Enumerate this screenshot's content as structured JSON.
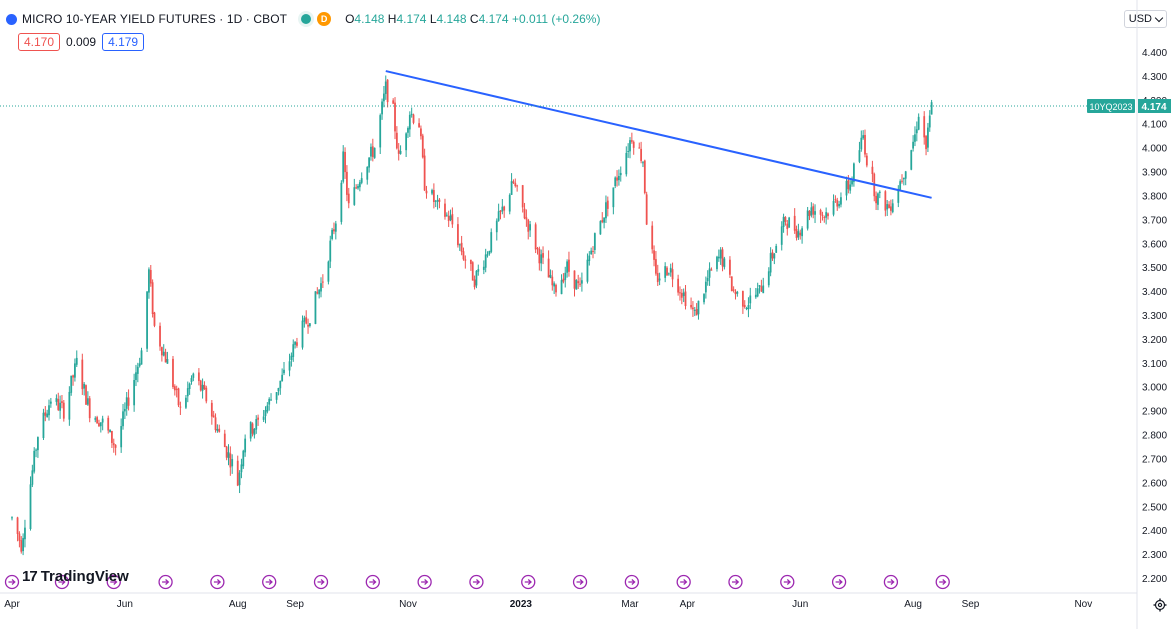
{
  "header": {
    "title": "MICRO 10-YEAR YIELD FUTURES · 1D · CBOT",
    "interval_badge": "D",
    "ohlc": {
      "o": "4.148",
      "h": "4.174",
      "l": "4.148",
      "c": "4.174",
      "change": "+0.011 (+0.26%)"
    },
    "bid": "4.170",
    "spread": "0.009",
    "ask": "4.179",
    "currency": "USD"
  },
  "brand": {
    "logo_text": "TradingView"
  },
  "colors": {
    "up": "#26a69a",
    "down": "#ef5350",
    "trendline": "#2962ff",
    "event": "#9c27b0",
    "label_bg": "#26a69a"
  },
  "chart_data": {
    "type": "candlestick",
    "y_axis": {
      "ticks": [
        2.2,
        2.3,
        2.4,
        2.5,
        2.6,
        2.7,
        2.8,
        2.9,
        3.0,
        3.1,
        3.2,
        3.3,
        3.4,
        3.5,
        3.6,
        3.7,
        3.8,
        3.9,
        4.0,
        4.1,
        4.2,
        4.3,
        4.4
      ],
      "range": [
        2.15,
        4.45
      ]
    },
    "x_axis": {
      "labels": [
        "Apr",
        "Jun",
        "Aug",
        "Sep",
        "Nov",
        "2023",
        "Mar",
        "Apr",
        "Jun",
        "Aug",
        "Sep",
        "Nov"
      ],
      "label_dates": [
        "2022-04-01",
        "2022-06-01",
        "2022-08-01",
        "2022-09-01",
        "2022-11-01",
        "2023-01-01",
        "2023-03-01",
        "2023-04-01",
        "2023-06-01",
        "2023-08-01",
        "2023-09-01",
        "2023-11-01"
      ],
      "range": [
        "2022-04-01",
        "2023-11-30"
      ]
    },
    "last_price": {
      "symbol": "10YQ2023",
      "value": 4.174
    },
    "trendline": {
      "from": {
        "date": "2022-10-20",
        "value": 4.32
      },
      "to": {
        "date": "2023-08-11",
        "value": 3.79
      }
    },
    "price_path": [
      [
        "2022-04-01",
        2.45
      ],
      [
        "2022-04-06",
        2.34
      ],
      [
        "2022-04-15",
        2.8
      ],
      [
        "2022-04-22",
        2.95
      ],
      [
        "2022-04-29",
        2.9
      ],
      [
        "2022-05-06",
        3.1
      ],
      [
        "2022-05-13",
        2.9
      ],
      [
        "2022-05-20",
        2.85
      ],
      [
        "2022-05-27",
        2.75
      ],
      [
        "2022-06-03",
        2.95
      ],
      [
        "2022-06-10",
        3.15
      ],
      [
        "2022-06-14",
        3.48
      ],
      [
        "2022-06-17",
        3.25
      ],
      [
        "2022-06-24",
        3.1
      ],
      [
        "2022-07-01",
        2.9
      ],
      [
        "2022-07-08",
        3.05
      ],
      [
        "2022-07-15",
        2.95
      ],
      [
        "2022-07-22",
        2.8
      ],
      [
        "2022-07-29",
        2.68
      ],
      [
        "2022-08-01",
        2.6
      ],
      [
        "2022-08-05",
        2.8
      ],
      [
        "2022-08-12",
        2.85
      ],
      [
        "2022-08-19",
        2.95
      ],
      [
        "2022-08-26",
        3.05
      ],
      [
        "2022-09-02",
        3.2
      ],
      [
        "2022-09-09",
        3.3
      ],
      [
        "2022-09-16",
        3.45
      ],
      [
        "2022-09-23",
        3.7
      ],
      [
        "2022-09-27",
        3.95
      ],
      [
        "2022-09-30",
        3.75
      ],
      [
        "2022-10-07",
        3.9
      ],
      [
        "2022-10-14",
        4.0
      ],
      [
        "2022-10-20",
        4.25
      ],
      [
        "2022-10-24",
        4.15
      ],
      [
        "2022-10-27",
        3.95
      ],
      [
        "2022-11-02",
        4.15
      ],
      [
        "2022-11-07",
        4.1
      ],
      [
        "2022-11-10",
        3.85
      ],
      [
        "2022-11-17",
        3.75
      ],
      [
        "2022-11-24",
        3.7
      ],
      [
        "2022-12-01",
        3.55
      ],
      [
        "2022-12-07",
        3.45
      ],
      [
        "2022-12-13",
        3.55
      ],
      [
        "2022-12-20",
        3.7
      ],
      [
        "2022-12-28",
        3.85
      ],
      [
        "2023-01-04",
        3.7
      ],
      [
        "2023-01-11",
        3.55
      ],
      [
        "2023-01-19",
        3.4
      ],
      [
        "2023-01-26",
        3.5
      ],
      [
        "2023-02-02",
        3.4
      ],
      [
        "2023-02-09",
        3.6
      ],
      [
        "2023-02-16",
        3.75
      ],
      [
        "2023-02-23",
        3.9
      ],
      [
        "2023-03-02",
        4.05
      ],
      [
        "2023-03-08",
        3.95
      ],
      [
        "2023-03-10",
        3.7
      ],
      [
        "2023-03-15",
        3.45
      ],
      [
        "2023-03-22",
        3.5
      ],
      [
        "2023-03-29",
        3.4
      ],
      [
        "2023-04-05",
        3.3
      ],
      [
        "2023-04-12",
        3.45
      ],
      [
        "2023-04-19",
        3.55
      ],
      [
        "2023-04-26",
        3.4
      ],
      [
        "2023-05-03",
        3.35
      ],
      [
        "2023-05-10",
        3.4
      ],
      [
        "2023-05-17",
        3.55
      ],
      [
        "2023-05-24",
        3.7
      ],
      [
        "2023-05-31",
        3.65
      ],
      [
        "2023-06-07",
        3.75
      ],
      [
        "2023-06-14",
        3.72
      ],
      [
        "2023-06-21",
        3.78
      ],
      [
        "2023-06-28",
        3.85
      ],
      [
        "2023-07-05",
        4.05
      ],
      [
        "2023-07-07",
        3.95
      ],
      [
        "2023-07-12",
        3.8
      ],
      [
        "2023-07-19",
        3.75
      ],
      [
        "2023-07-26",
        3.88
      ],
      [
        "2023-08-02",
        4.05
      ],
      [
        "2023-08-04",
        4.15
      ],
      [
        "2023-08-08",
        4.0
      ],
      [
        "2023-08-11",
        4.174
      ]
    ],
    "event_markers": [
      "2022-04-01",
      "2022-04-28",
      "2022-05-26",
      "2022-06-23",
      "2022-07-21",
      "2022-08-18",
      "2022-09-15",
      "2022-10-13",
      "2022-11-10",
      "2022-12-08",
      "2023-01-05",
      "2023-02-02",
      "2023-03-02",
      "2023-03-30",
      "2023-04-27",
      "2023-05-25",
      "2023-06-22",
      "2023-07-20",
      "2023-08-17"
    ]
  }
}
